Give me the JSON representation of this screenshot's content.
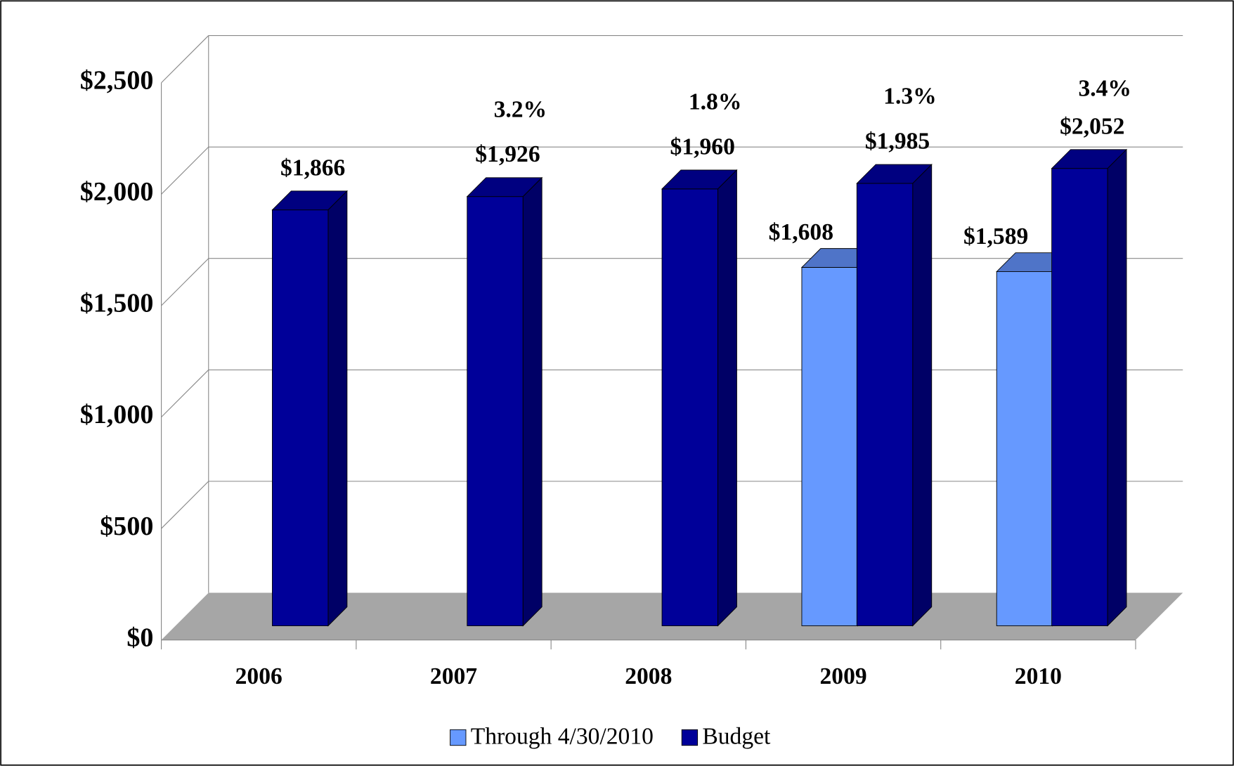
{
  "chart_data": {
    "type": "bar3d",
    "categories": [
      "2006",
      "2007",
      "2008",
      "2009",
      "2010"
    ],
    "series": [
      {
        "name": "Through 4/30/2010",
        "color": "#6699ff",
        "top_color": "#4f74c8",
        "side_color": "#3d5fa8",
        "values": [
          null,
          null,
          null,
          1608,
          1589
        ],
        "value_labels": [
          null,
          null,
          null,
          "$1,608",
          "$1,589"
        ]
      },
      {
        "name": "Budget",
        "color": "#000099",
        "top_color": "#000080",
        "side_color": "#000066",
        "values": [
          1866,
          1926,
          1960,
          1985,
          2052
        ],
        "value_labels": [
          "$1,866",
          "$1,926",
          "$1,960",
          "$1,985",
          "$2,052"
        ]
      }
    ],
    "annotations": [
      null,
      "3.2%",
      "1.8%",
      "1.3%",
      "3.4%"
    ],
    "ylim": [
      0,
      2500
    ],
    "yticks": [
      {
        "value": 0,
        "label": "$0"
      },
      {
        "value": 500,
        "label": "$500"
      },
      {
        "value": 1000,
        "label": "$1,000"
      },
      {
        "value": 1500,
        "label": "$1,500"
      },
      {
        "value": 2000,
        "label": "$2,000"
      },
      {
        "value": 2500,
        "label": "$2,500"
      }
    ],
    "grid": true,
    "legend": "bottom"
  }
}
